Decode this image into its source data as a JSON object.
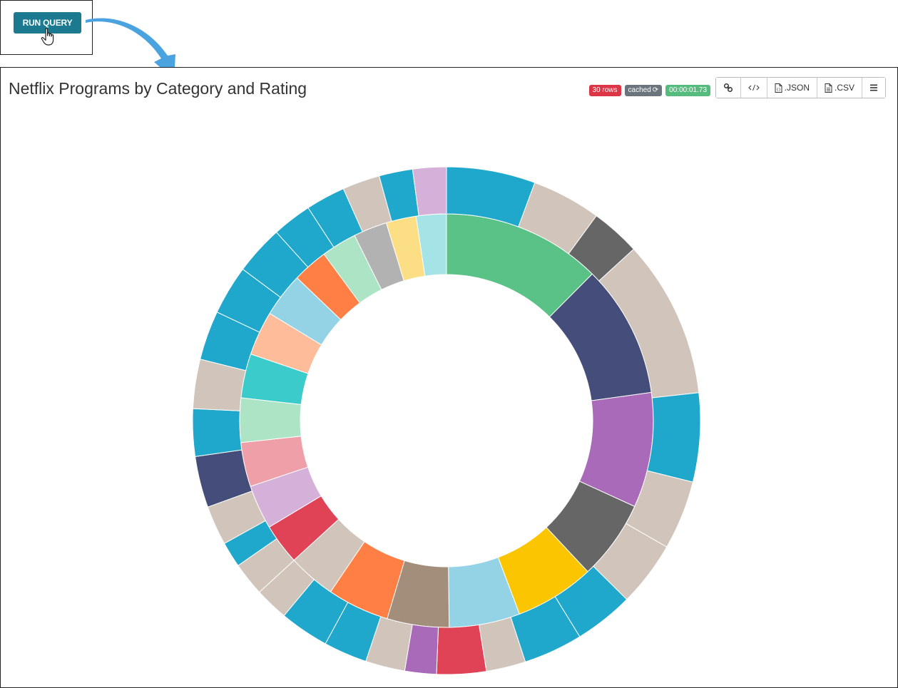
{
  "run_button": {
    "label": "RUN QUERY"
  },
  "panel": {
    "title": "Netflix Programs by Category and Rating",
    "badges": {
      "rows": "30 rows",
      "cached": "cached",
      "time": "00:00:01.73"
    },
    "toolbar": {
      "json_label": ".JSON",
      "csv_label": ".CSV"
    }
  },
  "colors": {
    "run_button_bg": "#1b7a8f",
    "arrow": "#4aa3df",
    "rows_badge": "#dc3545",
    "cached_badge": "#6c757d",
    "time_badge": "#56bc7d"
  },
  "chart_data": {
    "type": "sunburst",
    "inner": [
      {
        "value": 18,
        "color": "#5bc287"
      },
      {
        "value": 15,
        "color": "#454d7b"
      },
      {
        "value": 13,
        "color": "#a86ab9"
      },
      {
        "value": 9,
        "color": "#666666"
      },
      {
        "value": 9,
        "color": "#fbc601"
      },
      {
        "value": 8,
        "color": "#93d3e5"
      },
      {
        "value": 7,
        "color": "#a38e7b"
      },
      {
        "value": 7,
        "color": "#ff7f44"
      },
      {
        "value": 5.4,
        "color": "#d0c4bb"
      },
      {
        "value": 4.6,
        "color": "#e04355"
      },
      {
        "value": 5,
        "color": "#d5b0d9"
      },
      {
        "value": 5,
        "color": "#ef9fa8"
      },
      {
        "value": 5,
        "color": "#ade4c5"
      },
      {
        "value": 5,
        "color": "#3ccbcb"
      },
      {
        "value": 5,
        "color": "#ffbc9a"
      },
      {
        "value": 5,
        "color": "#93d3e5"
      },
      {
        "value": 4,
        "color": "#ff7f44"
      },
      {
        "value": 4,
        "color": "#ade4c5"
      },
      {
        "value": 3.8,
        "color": "#b2b2b2"
      },
      {
        "value": 3.4,
        "color": "#fcde84"
      },
      {
        "value": 3.4,
        "color": "#a4e4e6"
      }
    ],
    "outer": [
      {
        "value": 9,
        "color": "#1fa8cc"
      },
      {
        "value": 7,
        "color": "#d0c4bb"
      },
      {
        "value": 5,
        "color": "#666666"
      },
      {
        "value": 16,
        "color": "#d0c4bb"
      },
      {
        "value": 9,
        "color": "#1fa8cc"
      },
      {
        "value": 7,
        "color": "#d0c4bb"
      },
      {
        "value": 6.6,
        "color": "#d0c4bb"
      },
      {
        "value": 6,
        "color": "#1fa8cc"
      },
      {
        "value": 6,
        "color": "#1fa8cc"
      },
      {
        "value": 4,
        "color": "#d0c4bb"
      },
      {
        "value": 5,
        "color": "#e04355"
      },
      {
        "value": 3.2,
        "color": "#a86ab9"
      },
      {
        "value": 4,
        "color": "#d0c4bb"
      },
      {
        "value": 4.4,
        "color": "#1fa8cc"
      },
      {
        "value": 5,
        "color": "#1fa8cc"
      },
      {
        "value": 3.4,
        "color": "#d0c4bb"
      },
      {
        "value": 3.4,
        "color": "#d0c4bb"
      },
      {
        "value": 2.6,
        "color": "#1fa8cc"
      },
      {
        "value": 4,
        "color": "#d0c4bb"
      },
      {
        "value": 5.2,
        "color": "#454d7b"
      },
      {
        "value": 4.8,
        "color": "#1fa8cc"
      },
      {
        "value": 5,
        "color": "#d0c4bb"
      },
      {
        "value": 5,
        "color": "#1fa8cc"
      },
      {
        "value": 5,
        "color": "#1fa8cc"
      },
      {
        "value": 5,
        "color": "#1fa8cc"
      },
      {
        "value": 4,
        "color": "#1fa8cc"
      },
      {
        "value": 4,
        "color": "#1fa8cc"
      },
      {
        "value": 3.8,
        "color": "#d0c4bb"
      },
      {
        "value": 3.4,
        "color": "#1fa8cc"
      },
      {
        "value": 3.4,
        "color": "#d5b0d9"
      }
    ]
  }
}
